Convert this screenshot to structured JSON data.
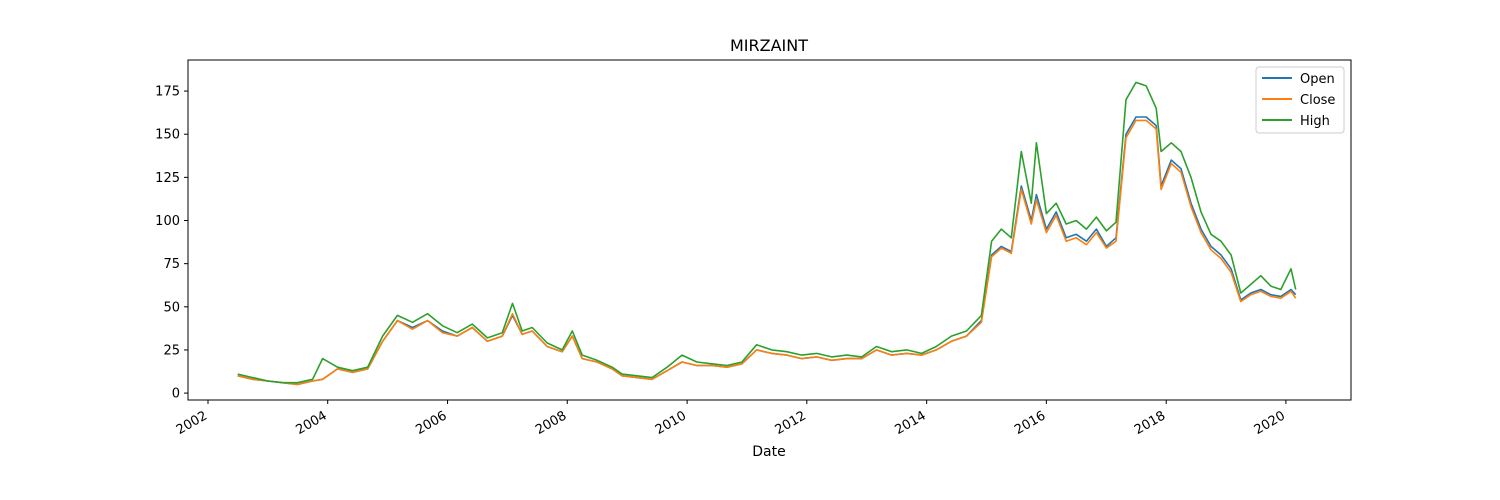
{
  "chart_data": {
    "type": "line",
    "title": "MIRZAINT",
    "xlabel": "Date",
    "ylabel": "",
    "x_axis": "date",
    "xlim": [
      "2001-09-01",
      "2021-02-01"
    ],
    "ylim": [
      -4,
      193
    ],
    "x_ticks": [
      "2002",
      "2004",
      "2006",
      "2008",
      "2010",
      "2012",
      "2014",
      "2016",
      "2018",
      "2020"
    ],
    "y_ticks": [
      0,
      25,
      50,
      75,
      100,
      125,
      150,
      175
    ],
    "grid": false,
    "legend_position": "top-right",
    "x": [
      "2002-07",
      "2002-10",
      "2003-01",
      "2003-04",
      "2003-07",
      "2003-10",
      "2003-12",
      "2004-03",
      "2004-06",
      "2004-09",
      "2004-12",
      "2005-03",
      "2005-06",
      "2005-09",
      "2005-12",
      "2006-03",
      "2006-06",
      "2006-09",
      "2006-12",
      "2007-02",
      "2007-04",
      "2007-06",
      "2007-09",
      "2007-12",
      "2008-02",
      "2008-04",
      "2008-07",
      "2008-10",
      "2008-12",
      "2009-03",
      "2009-06",
      "2009-09",
      "2009-12",
      "2010-03",
      "2010-06",
      "2010-09",
      "2010-12",
      "2011-03",
      "2011-06",
      "2011-09",
      "2011-12",
      "2012-03",
      "2012-06",
      "2012-09",
      "2012-12",
      "2013-03",
      "2013-06",
      "2013-09",
      "2013-12",
      "2014-03",
      "2014-06",
      "2014-09",
      "2014-12",
      "2015-02",
      "2015-04",
      "2015-06",
      "2015-08",
      "2015-10",
      "2015-11",
      "2016-01",
      "2016-03",
      "2016-05",
      "2016-07",
      "2016-09",
      "2016-11",
      "2017-01",
      "2017-03",
      "2017-05",
      "2017-07",
      "2017-09",
      "2017-11",
      "2017-12",
      "2018-02",
      "2018-04",
      "2018-06",
      "2018-08",
      "2018-10",
      "2018-12",
      "2019-02",
      "2019-04",
      "2019-06",
      "2019-08",
      "2019-10",
      "2019-12",
      "2020-02",
      "2020-03"
    ],
    "series": [
      {
        "name": "Open",
        "color": "#1f77b4",
        "values": [
          10,
          8,
          7,
          6,
          5,
          7,
          8,
          14,
          12,
          14,
          30,
          42,
          38,
          42,
          36,
          33,
          38,
          30,
          33,
          45,
          34,
          36,
          27,
          24,
          33,
          20,
          18,
          14,
          10,
          9,
          8,
          13,
          18,
          16,
          16,
          15,
          17,
          25,
          23,
          22,
          20,
          21,
          19,
          20,
          20,
          25,
          22,
          23,
          22,
          25,
          30,
          33,
          42,
          80,
          85,
          82,
          120,
          100,
          115,
          95,
          105,
          90,
          92,
          88,
          95,
          85,
          90,
          150,
          160,
          160,
          155,
          120,
          135,
          130,
          110,
          95,
          85,
          80,
          72,
          54,
          58,
          60,
          57,
          56,
          60,
          57
        ]
      },
      {
        "name": "Close",
        "color": "#ff7f0e",
        "values": [
          10,
          8,
          7,
          6,
          5,
          7,
          8,
          14,
          12,
          14,
          30,
          42,
          37,
          42,
          35,
          33,
          38,
          30,
          33,
          46,
          34,
          36,
          27,
          24,
          33,
          20,
          18,
          14,
          10,
          9,
          8,
          13,
          18,
          16,
          16,
          15,
          17,
          25,
          23,
          22,
          20,
          21,
          19,
          20,
          20,
          25,
          22,
          23,
          22,
          25,
          30,
          33,
          41,
          79,
          84,
          81,
          118,
          98,
          112,
          93,
          103,
          88,
          90,
          86,
          93,
          84,
          88,
          148,
          158,
          158,
          153,
          118,
          133,
          128,
          108,
          93,
          83,
          78,
          70,
          53,
          57,
          59,
          56,
          55,
          59,
          55
        ]
      },
      {
        "name": "High",
        "color": "#2ca02c",
        "values": [
          11,
          9,
          7,
          6,
          6,
          8,
          20,
          15,
          13,
          15,
          33,
          45,
          41,
          46,
          39,
          35,
          40,
          32,
          35,
          52,
          36,
          38,
          29,
          25,
          36,
          22,
          19,
          15,
          11,
          10,
          9,
          15,
          22,
          18,
          17,
          16,
          18,
          28,
          25,
          24,
          22,
          23,
          21,
          22,
          21,
          27,
          24,
          25,
          23,
          27,
          33,
          36,
          45,
          88,
          95,
          90,
          140,
          110,
          145,
          104,
          110,
          98,
          100,
          95,
          102,
          94,
          99,
          170,
          180,
          178,
          165,
          140,
          145,
          140,
          125,
          105,
          92,
          88,
          80,
          58,
          63,
          68,
          62,
          60,
          72,
          60
        ]
      }
    ]
  }
}
